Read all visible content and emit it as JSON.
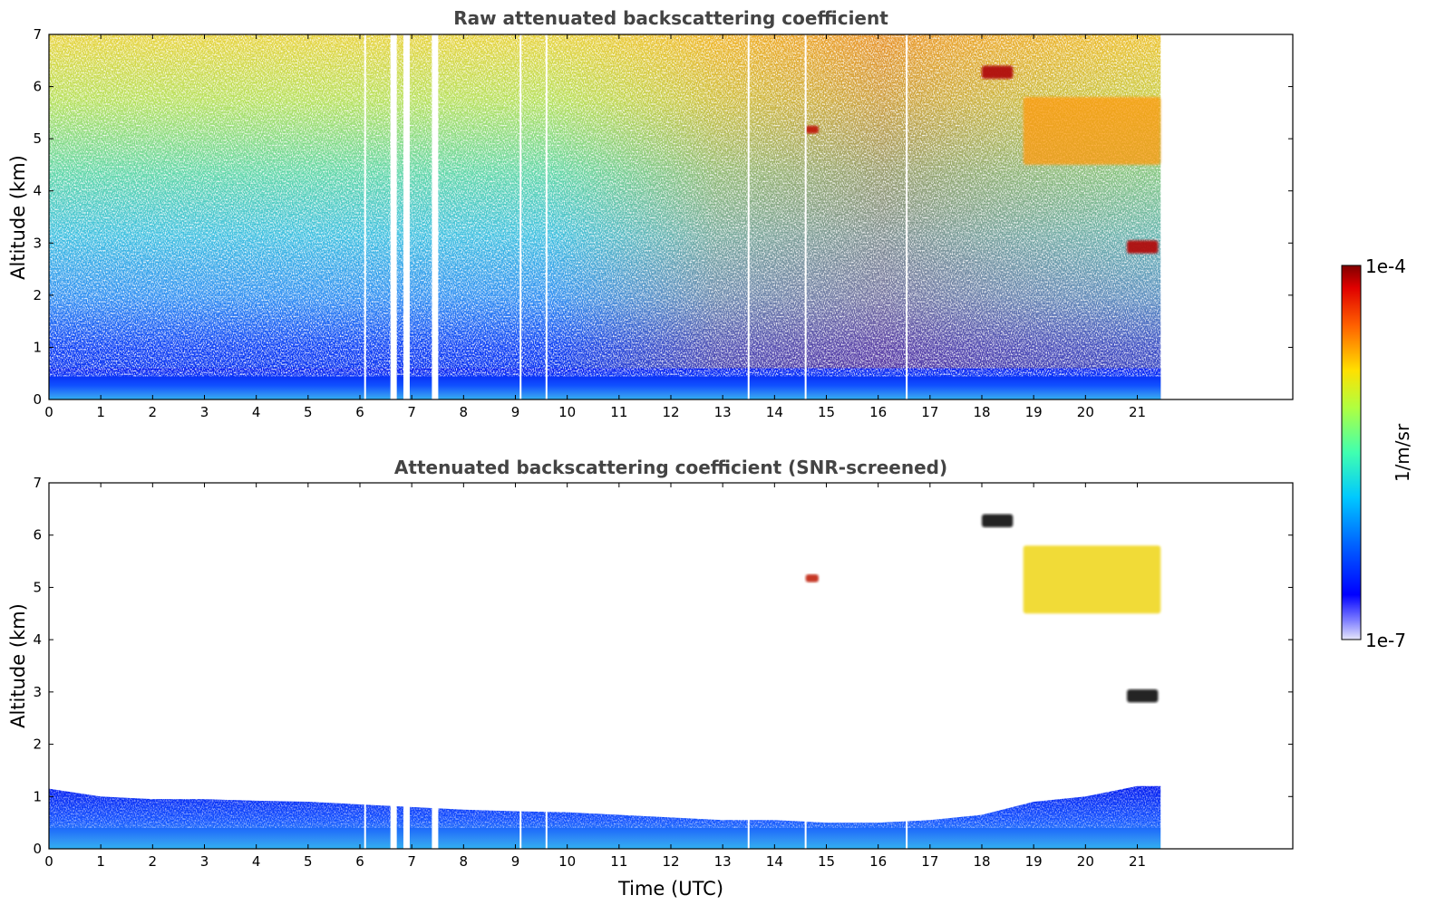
{
  "chart_data": [
    {
      "type": "heatmap",
      "title": "Raw attenuated backscattering coefficient",
      "xlabel": "",
      "ylabel": "Altitude (km)",
      "x_ticks": [
        "0",
        "1",
        "2",
        "3",
        "4",
        "5",
        "6",
        "7",
        "8",
        "9",
        "10",
        "11",
        "12",
        "13",
        "14",
        "15",
        "16",
        "17",
        "18",
        "19",
        "20",
        "21"
      ],
      "y_ticks": [
        "0",
        "1",
        "2",
        "3",
        "4",
        "5",
        "6",
        "7"
      ],
      "xlim": [
        0,
        24
      ],
      "ylim": [
        0,
        7
      ],
      "data_extent_x": [
        0,
        21.45
      ],
      "grid": false,
      "data_gaps_utc": [
        6.1,
        6.65,
        6.9,
        7.45,
        9.1,
        9.6,
        13.5,
        14.6,
        16.55
      ],
      "layers": [
        {
          "name": "boundary layer",
          "x": [
            0,
            21.45
          ],
          "altitude_km": [
            0,
            0.6
          ],
          "level": "high (blue-cyan)"
        },
        {
          "name": "cirrus cloud",
          "x": [
            18.8,
            21.45
          ],
          "altitude_km": [
            4.5,
            5.8
          ],
          "level": "very high (yellow-red)"
        },
        {
          "name": "cloud patch",
          "x": [
            18.0,
            18.6
          ],
          "altitude_km": [
            6.15,
            6.4
          ],
          "level": "saturated"
        },
        {
          "name": "cloud patch",
          "x": [
            14.6,
            14.85
          ],
          "altitude_km": [
            5.1,
            5.25
          ],
          "level": "saturated"
        },
        {
          "name": "cloud patch",
          "x": [
            20.8,
            21.4
          ],
          "altitude_km": [
            2.8,
            3.05
          ],
          "level": "saturated"
        }
      ]
    },
    {
      "type": "heatmap",
      "title": "Attenuated backscattering coefficient (SNR-screened)",
      "xlabel": "Time (UTC)",
      "ylabel": "Altitude (km)",
      "x_ticks": [
        "0",
        "1",
        "2",
        "3",
        "4",
        "5",
        "6",
        "7",
        "8",
        "9",
        "10",
        "11",
        "12",
        "13",
        "14",
        "15",
        "16",
        "17",
        "18",
        "19",
        "20",
        "21"
      ],
      "y_ticks": [
        "0",
        "1",
        "2",
        "3",
        "4",
        "5",
        "6",
        "7"
      ],
      "xlim": [
        0,
        24
      ],
      "ylim": [
        0,
        7
      ],
      "data_extent_x": [
        0,
        21.45
      ],
      "grid": false,
      "boundary_layer_top_km": {
        "time": [
          0,
          1,
          2,
          3,
          4,
          5,
          6,
          7,
          8,
          9,
          10,
          11,
          12,
          13,
          14,
          15,
          16,
          17,
          18,
          19,
          20,
          21,
          21.45
        ],
        "height": [
          1.15,
          1.0,
          0.95,
          0.95,
          0.92,
          0.9,
          0.85,
          0.8,
          0.75,
          0.72,
          0.7,
          0.65,
          0.6,
          0.55,
          0.55,
          0.5,
          0.5,
          0.55,
          0.65,
          0.9,
          1.0,
          1.2,
          1.2
        ]
      }
    }
  ],
  "colorbar": {
    "min_label": "1e-7",
    "max_label": "1e-4",
    "label": "1/m/sr",
    "scale": "log",
    "colormap": "jet"
  }
}
